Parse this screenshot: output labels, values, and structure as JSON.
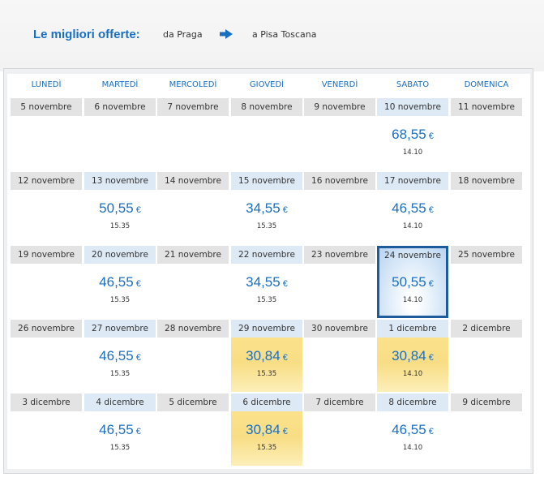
{
  "header": {
    "title": "Le migliori offerte:",
    "from": "da Praga",
    "to": "a Pisa Toscana",
    "arrow_icon": "arrow-right-icon"
  },
  "calendar": {
    "weekdays": [
      "LUNEDÌ",
      "MARTEDÌ",
      "MERCOLEDÌ",
      "GIOVEDÌ",
      "VENERDÌ",
      "SABATO",
      "DOMENICA"
    ],
    "currency": "€",
    "colors": {
      "accent": "#1a6fc2",
      "cheapest": "#fbe38f",
      "selected_border": "#1d5b9c",
      "date_bar": "#e3e3e3",
      "date_bar_priced": "#dde9f5"
    },
    "weeks": [
      [
        {
          "date": "5 novembre"
        },
        {
          "date": "6 novembre"
        },
        {
          "date": "7 novembre"
        },
        {
          "date": "8 novembre"
        },
        {
          "date": "9 novembre"
        },
        {
          "date": "10 novembre",
          "price": "68,55",
          "time": "14.10"
        },
        {
          "date": "11 novembre"
        }
      ],
      [
        {
          "date": "12 novembre"
        },
        {
          "date": "13 novembre",
          "price": "50,55",
          "time": "15.35"
        },
        {
          "date": "14 novembre"
        },
        {
          "date": "15 novembre",
          "price": "34,55",
          "time": "15.35"
        },
        {
          "date": "16 novembre"
        },
        {
          "date": "17 novembre",
          "price": "46,55",
          "time": "14.10"
        },
        {
          "date": "18 novembre"
        }
      ],
      [
        {
          "date": "19 novembre"
        },
        {
          "date": "20 novembre",
          "price": "46,55",
          "time": "15.35"
        },
        {
          "date": "21 novembre"
        },
        {
          "date": "22 novembre",
          "price": "34,55",
          "time": "15.35"
        },
        {
          "date": "23 novembre"
        },
        {
          "date": "24 novembre",
          "price": "50,55",
          "time": "14.10",
          "selected": true
        },
        {
          "date": "25 novembre"
        }
      ],
      [
        {
          "date": "26 novembre"
        },
        {
          "date": "27 novembre",
          "price": "46,55",
          "time": "15.35"
        },
        {
          "date": "28 novembre"
        },
        {
          "date": "29 novembre",
          "price": "30,84",
          "time": "15.35",
          "cheapest": true
        },
        {
          "date": "30 novembre"
        },
        {
          "date": "1 dicembre",
          "price": "30,84",
          "time": "14.10",
          "cheapest": true
        },
        {
          "date": "2 dicembre"
        }
      ],
      [
        {
          "date": "3 dicembre"
        },
        {
          "date": "4 dicembre",
          "price": "46,55",
          "time": "15.35"
        },
        {
          "date": "5 dicembre"
        },
        {
          "date": "6 dicembre",
          "price": "30,84",
          "time": "15.35",
          "cheapest": true
        },
        {
          "date": "7 dicembre"
        },
        {
          "date": "8 dicembre",
          "price": "46,55",
          "time": "14.10"
        },
        {
          "date": "9 dicembre"
        }
      ]
    ]
  }
}
